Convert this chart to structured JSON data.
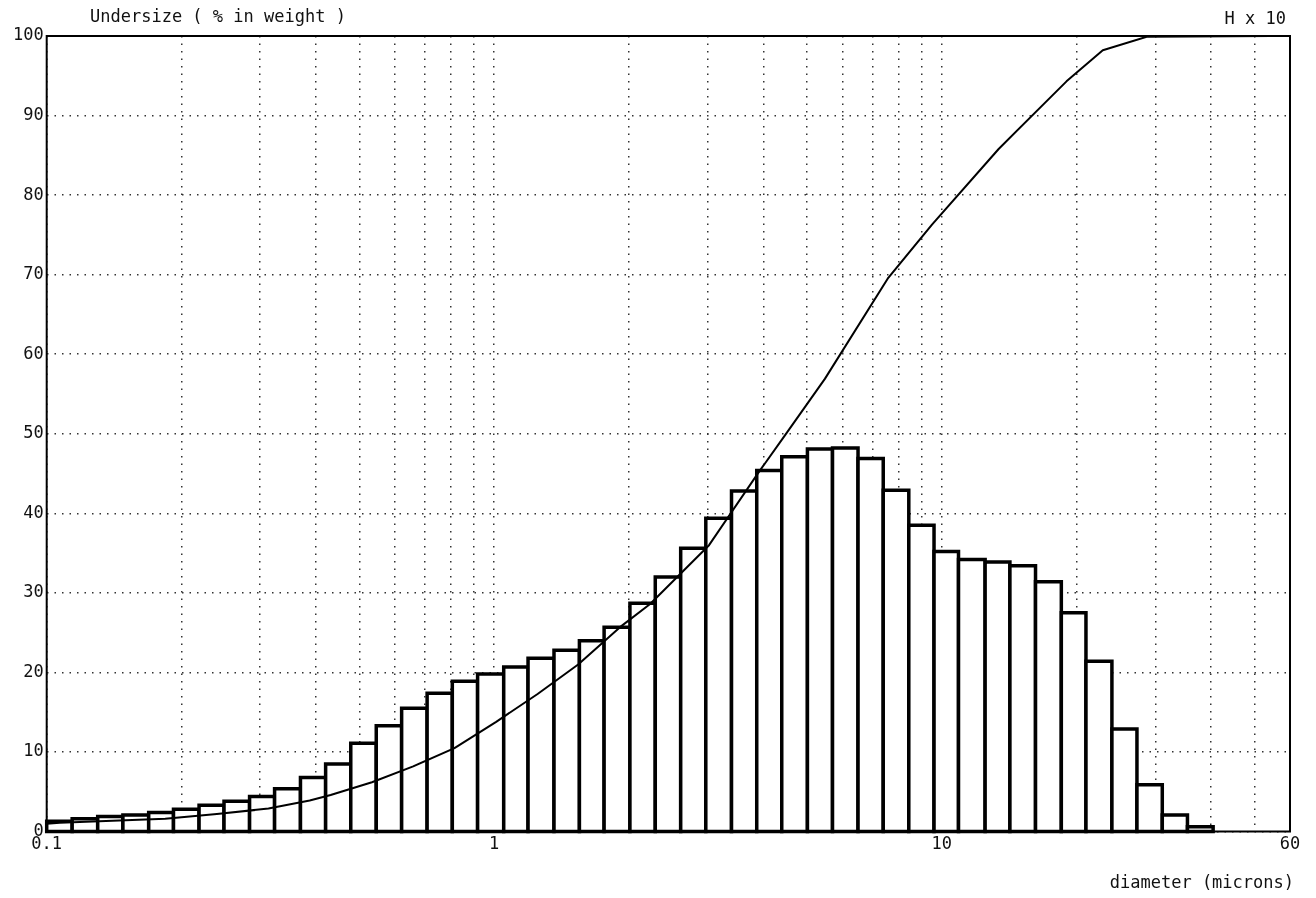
{
  "chart_data": {
    "type": "histogram",
    "ylabel": "Undersize ( % in weight )",
    "xlabel": "diameter (microns)",
    "annotations": [
      "H x 10"
    ],
    "log": "x",
    "grid": true,
    "legend": false,
    "color": "#ffffff",
    "bins": [
      0.1,
      0.114,
      0.13,
      0.148,
      0.169,
      0.192,
      0.219,
      0.249,
      0.284,
      0.323,
      0.369,
      0.42,
      0.478,
      0.545,
      0.621,
      0.708,
      0.806,
      0.918,
      1.05,
      1.19,
      1.36,
      1.55,
      1.76,
      2.01,
      2.29,
      2.61,
      2.97,
      3.39,
      3.86,
      4.39,
      5.01,
      5.7,
      6.5,
      7.4,
      8.44,
      9.61,
      10.9,
      12.5,
      14.2,
      16.2,
      18.5,
      21.0,
      24.0,
      27.3,
      31.1,
      35.4,
      40.4
    ],
    "values": [
      1.3,
      1.6,
      1.9,
      2.1,
      2.4,
      2.8,
      3.3,
      3.8,
      4.4,
      5.4,
      6.8,
      8.5,
      11.1,
      13.3,
      15.5,
      17.4,
      18.9,
      19.8,
      20.7,
      21.8,
      22.8,
      24.0,
      25.7,
      28.7,
      32.0,
      35.6,
      39.4,
      42.8,
      45.4,
      47.1,
      48.1,
      48.2,
      46.9,
      42.9,
      38.5,
      35.2,
      34.2,
      33.9,
      33.4,
      31.4,
      27.5,
      21.4,
      12.9,
      5.9,
      2.1,
      0.6
    ],
    "series": [
      {
        "type": "line",
        "color": "#000000",
        "marker": "none",
        "x": [
          0.1,
          0.107,
          0.184,
          0.24,
          0.313,
          0.387,
          0.431,
          0.533,
          0.659,
          0.815,
          1.01,
          1.25,
          1.54,
          1.91,
          2.23,
          3.02,
          3.88,
          4.45,
          5.48,
          7.57,
          9.51,
          13.4,
          19.0,
          22.9,
          28.7,
          60
        ],
        "values": [
          1.0,
          1.1,
          1.6,
          2.2,
          2.9,
          3.9,
          4.6,
          6.2,
          8.2,
          10.5,
          13.8,
          17.3,
          21.0,
          25.7,
          28.6,
          36.0,
          45.0,
          49.7,
          56.9,
          69.5,
          76.3,
          85.8,
          94.3,
          98.2,
          99.9,
          100
        ]
      }
    ],
    "xlim": [
      0.1,
      60
    ],
    "xticks": [
      0.1,
      {
        "value": 0.2,
        "label": null
      },
      {
        "value": 0.3,
        "label": null
      },
      {
        "value": 0.4,
        "label": null
      },
      {
        "value": 0.5,
        "label": null
      },
      {
        "value": 0.6,
        "label": null
      },
      {
        "value": 0.7,
        "label": null
      },
      {
        "value": 0.8,
        "label": null
      },
      {
        "value": 0.9,
        "label": null
      },
      1,
      {
        "value": 2,
        "label": null
      },
      {
        "value": 3,
        "label": null
      },
      {
        "value": 4,
        "label": null
      },
      {
        "value": 5,
        "label": null
      },
      {
        "value": 6,
        "label": null
      },
      {
        "value": 7,
        "label": null
      },
      {
        "value": 8,
        "label": null
      },
      {
        "value": 9,
        "label": null
      },
      10,
      {
        "value": 20,
        "label": null
      },
      {
        "value": 30,
        "label": null
      },
      {
        "value": 40,
        "label": null
      },
      {
        "value": 50,
        "label": null
      },
      60
    ],
    "ylim": [
      0,
      100
    ],
    "yticks": [
      0,
      10,
      20,
      30,
      40,
      50,
      60,
      70,
      80,
      90,
      100
    ]
  }
}
